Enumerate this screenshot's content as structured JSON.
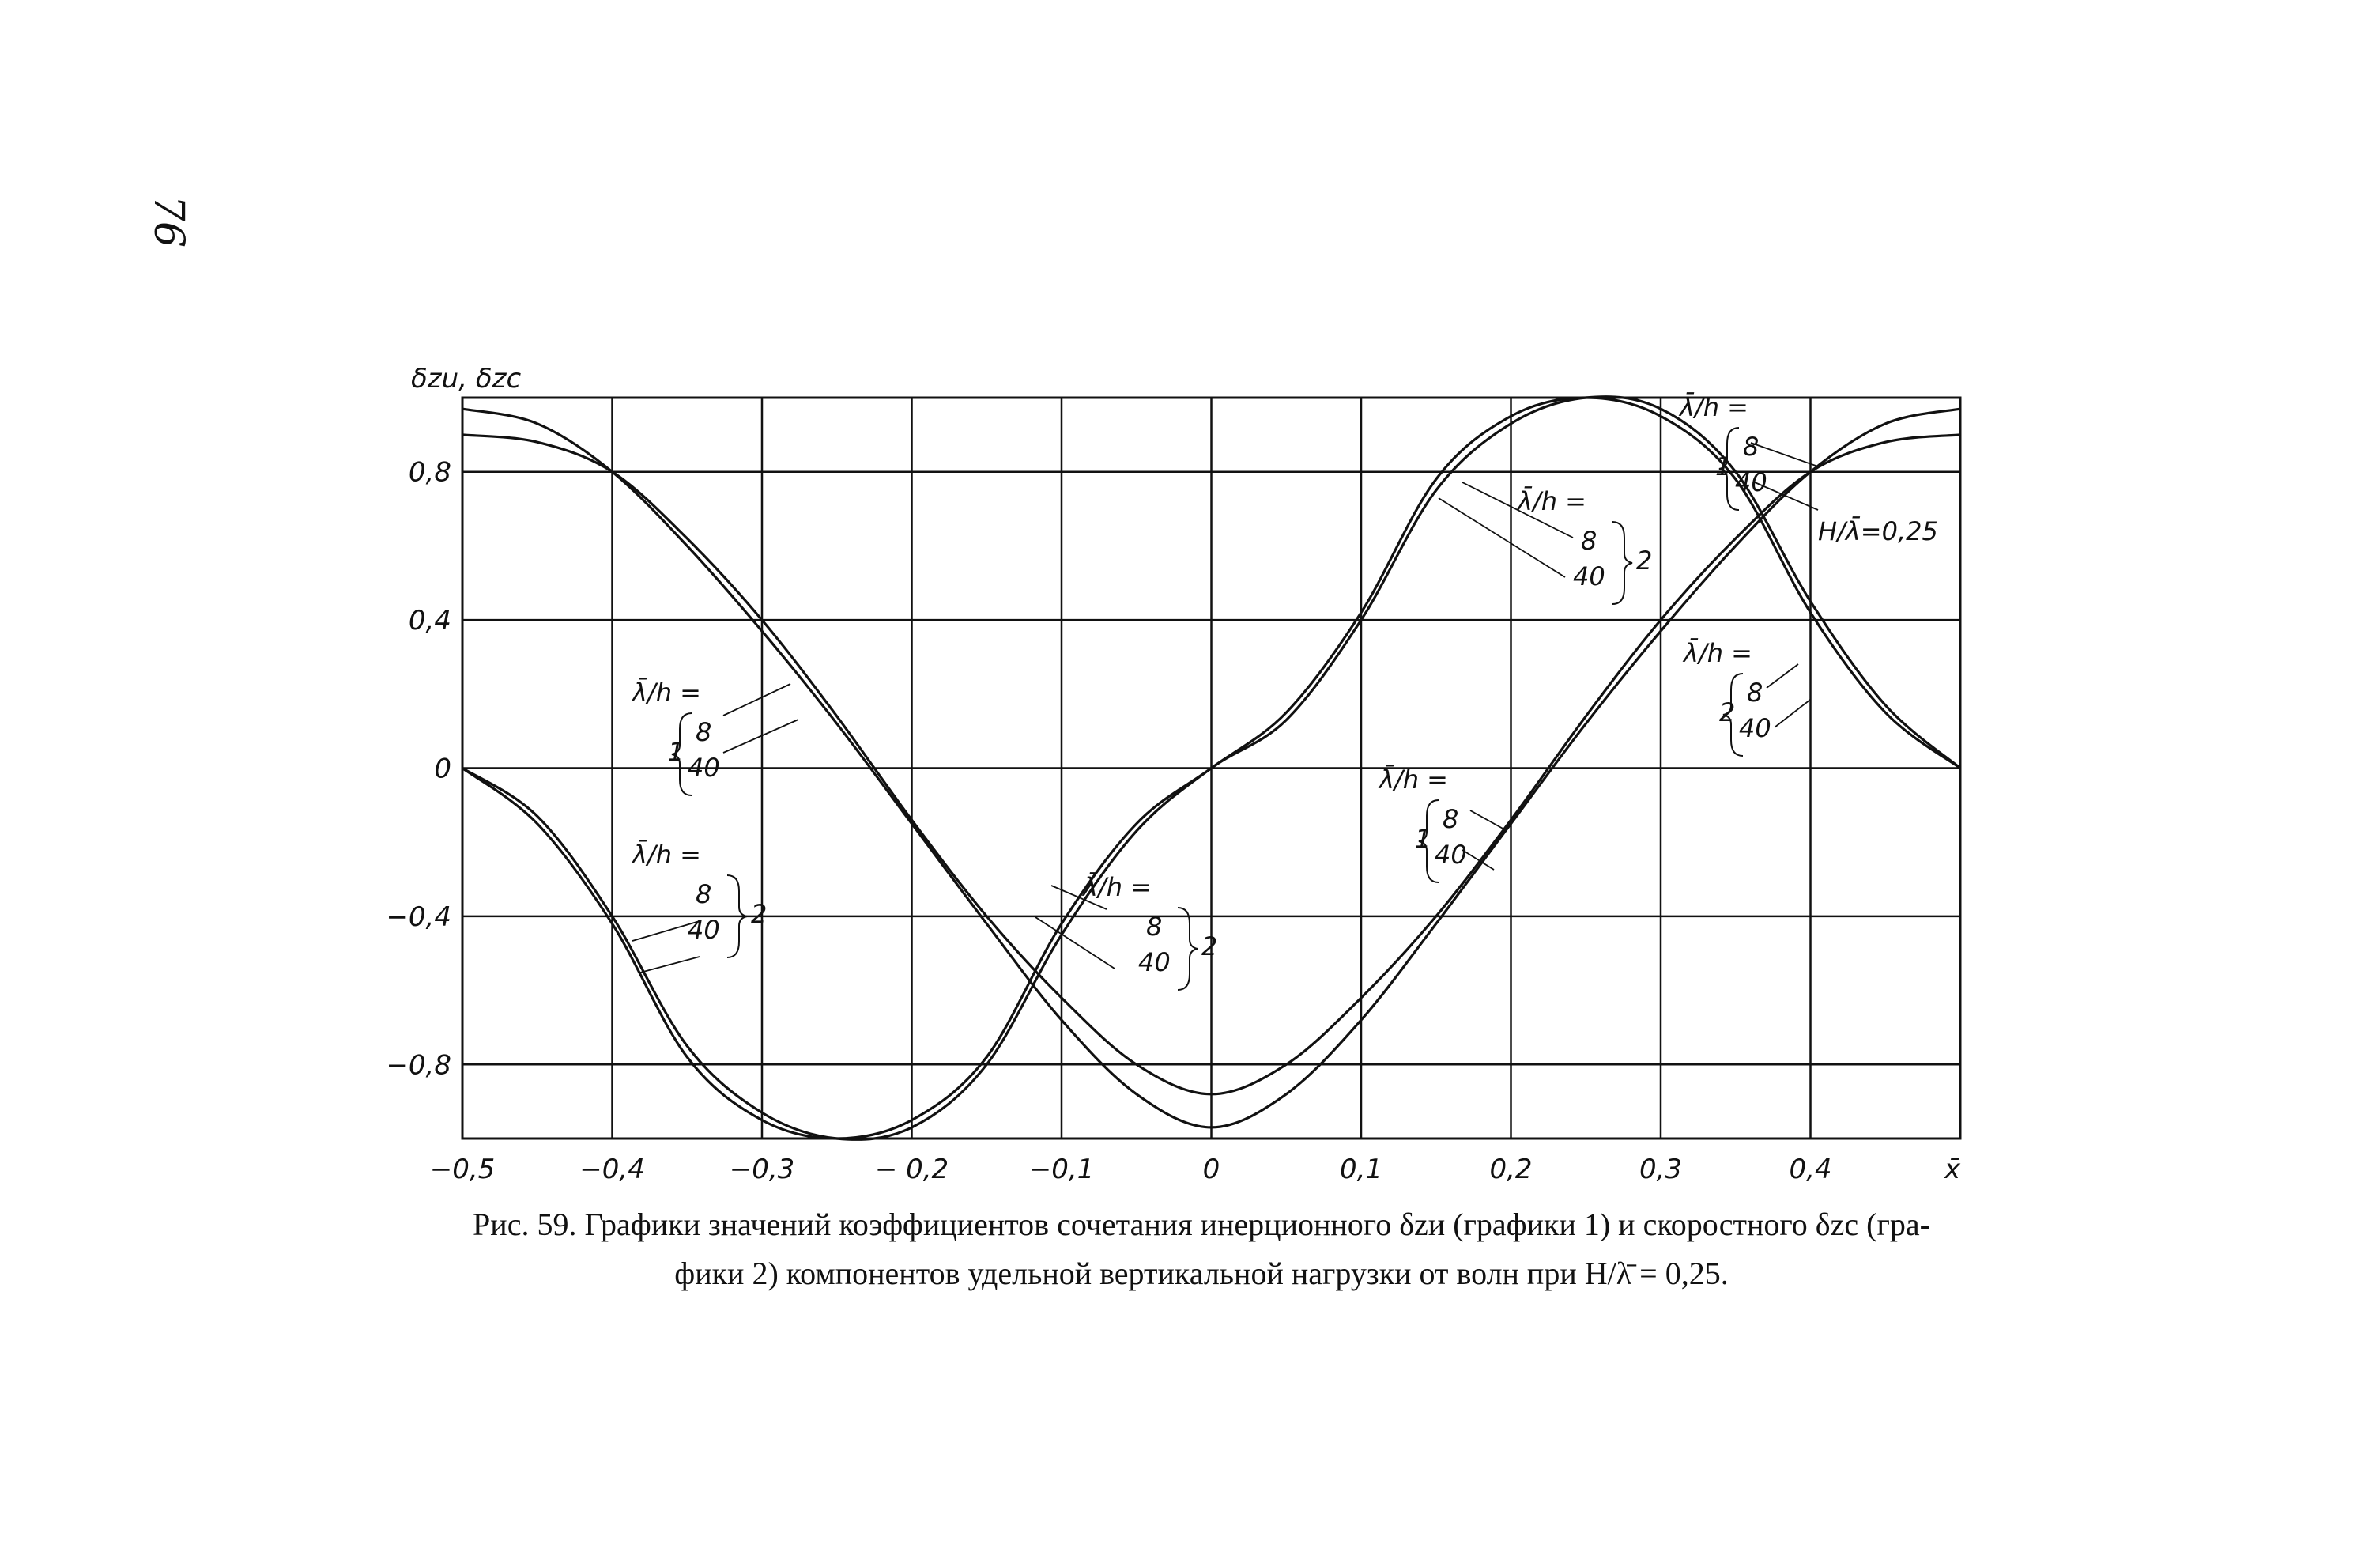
{
  "page_number": "76",
  "chart_data": {
    "type": "line",
    "ylabel": "δzu, δzc",
    "xlabel": "x̄",
    "xlim": [
      -0.5,
      0.5
    ],
    "ylim": [
      -1.0,
      1.0
    ],
    "grid": true,
    "x_ticks": [
      -0.5,
      -0.4,
      -0.3,
      -0.2,
      -0.1,
      0,
      0.1,
      0.2,
      0.3,
      0.4
    ],
    "x_tick_labels": [
      "−0,5",
      "−0,4",
      "−0,3",
      "− 0,2",
      "−0,1",
      "0",
      "0,1",
      "0,2",
      "0,3",
      "0,4",
      "x̄"
    ],
    "y_ticks": [
      0.8,
      0.4,
      0,
      -0.4,
      -0.8
    ],
    "y_tick_labels": [
      "0,8",
      "0,4",
      "0",
      "−0,4",
      "−0,8"
    ],
    "series": [
      {
        "group": 1,
        "lh": "8",
        "x": [
          -0.5,
          -0.45,
          -0.4,
          -0.35,
          -0.3,
          -0.25,
          -0.2,
          -0.15,
          -0.1,
          -0.05,
          0,
          0.05,
          0.1,
          0.15,
          0.2,
          0.25,
          0.3,
          0.35,
          0.4,
          0.45,
          0.5
        ],
        "y": [
          0.9,
          0.88,
          0.8,
          0.62,
          0.4,
          0.14,
          -0.14,
          -0.4,
          -0.62,
          -0.8,
          -0.88,
          -0.8,
          -0.62,
          -0.4,
          -0.14,
          0.14,
          0.4,
          0.62,
          0.8,
          0.88,
          0.9
        ]
      },
      {
        "group": 1,
        "lh": "40",
        "x": [
          -0.5,
          -0.45,
          -0.4,
          -0.35,
          -0.3,
          -0.25,
          -0.2,
          -0.15,
          -0.1,
          -0.05,
          0,
          0.05,
          0.1,
          0.15,
          0.2,
          0.25,
          0.3,
          0.35,
          0.4,
          0.45,
          0.5
        ],
        "y": [
          0.97,
          0.93,
          0.8,
          0.6,
          0.37,
          0.12,
          -0.15,
          -0.42,
          -0.68,
          -0.88,
          -0.97,
          -0.88,
          -0.68,
          -0.42,
          -0.15,
          0.12,
          0.37,
          0.6,
          0.8,
          0.93,
          0.97
        ]
      },
      {
        "group": 2,
        "lh": "8",
        "x": [
          -0.5,
          -0.45,
          -0.4,
          -0.35,
          -0.3,
          -0.25,
          -0.2,
          -0.15,
          -0.1,
          -0.05,
          0,
          0.05,
          0.1,
          0.15,
          0.2,
          0.25,
          0.3,
          0.35,
          0.4,
          0.45,
          0.5
        ],
        "y": [
          0,
          -0.15,
          -0.42,
          -0.78,
          -0.95,
          -1.0,
          -0.95,
          -0.78,
          -0.42,
          -0.15,
          0,
          0.15,
          0.42,
          0.78,
          0.95,
          1.0,
          0.95,
          0.78,
          0.42,
          0.15,
          0
        ]
      },
      {
        "group": 2,
        "lh": "40",
        "x": [
          -0.5,
          -0.45,
          -0.4,
          -0.35,
          -0.3,
          -0.25,
          -0.2,
          -0.15,
          -0.1,
          -0.05,
          0,
          0.05,
          0.1,
          0.15,
          0.2,
          0.25,
          0.3,
          0.35,
          0.4,
          0.45,
          0.5
        ],
        "y": [
          0,
          -0.13,
          -0.4,
          -0.75,
          -0.93,
          -1.0,
          -0.97,
          -0.8,
          -0.45,
          -0.17,
          0,
          0.13,
          0.4,
          0.75,
          0.93,
          1.0,
          0.97,
          0.8,
          0.45,
          0.17,
          0
        ]
      }
    ],
    "annotations": {
      "lambda_h": "λ̄/h =",
      "n8": "8",
      "n40": "40",
      "g1": "1",
      "g2": "2",
      "ratio": "H/λ̄=0,25"
    }
  },
  "caption": {
    "line1": "Рис. 59. Графики значений коэффициентов сочетания инерционного δzи (графики 1) и скоростного δzc (гра-",
    "line2": "фики 2) компонентов удельной вертикальной нагрузки от волн при H/λ̄ = 0,25."
  }
}
